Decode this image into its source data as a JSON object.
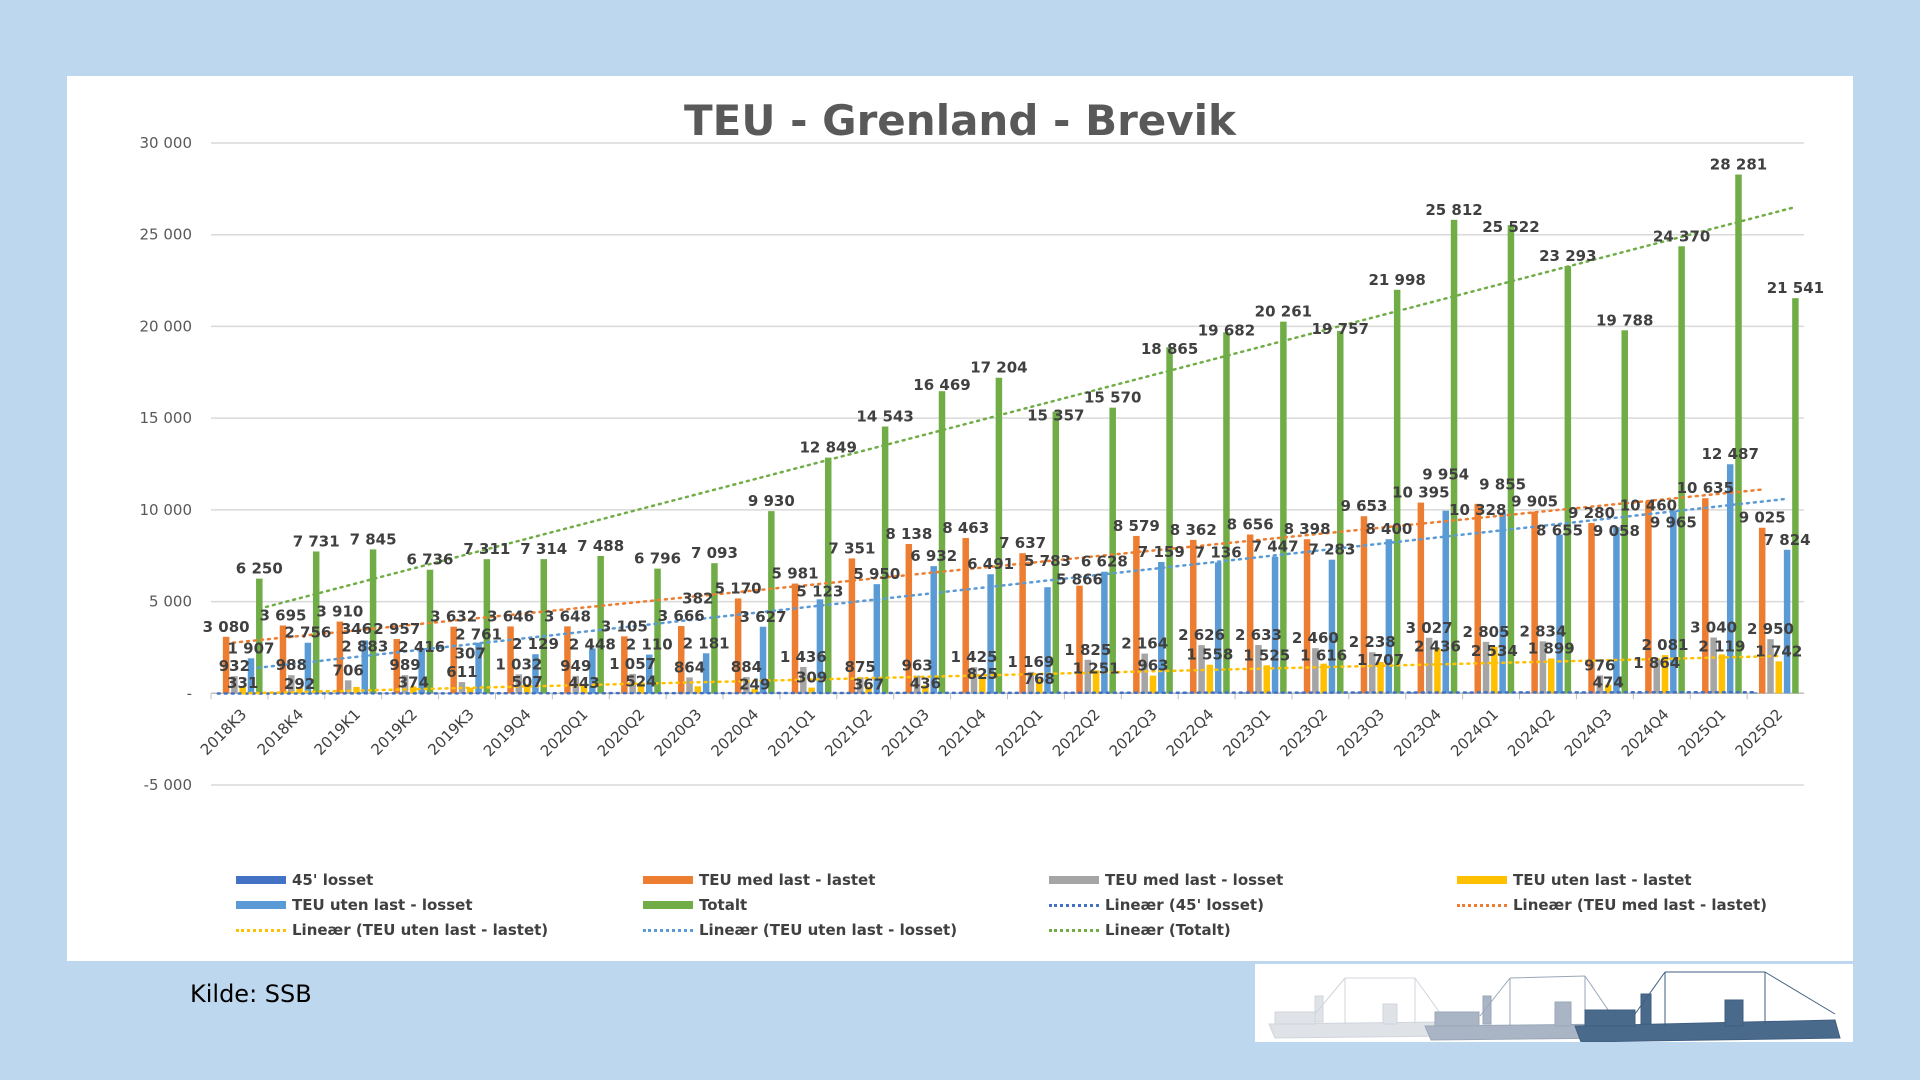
{
  "chart_data": {
    "type": "bar",
    "title": "TEU - Grenland - Brevik",
    "categories": [
      "2018K3",
      "2018K4",
      "2019K1",
      "2019K2",
      "2019K3",
      "2019Q4",
      "2020Q1",
      "2020Q2",
      "2020Q3",
      "2020Q4",
      "2021Q1",
      "2021Q2",
      "2021Q3",
      "2021Q4",
      "2022Q1",
      "2022Q2",
      "2022Q3",
      "2022Q4",
      "2023Q1",
      "2023Q2",
      "2023Q3",
      "2023Q4",
      "2024Q1",
      "2024Q2",
      "2024Q3",
      "2024Q4",
      "2025Q1",
      "2025Q2"
    ],
    "ylim": [
      -5000,
      30000
    ],
    "yticks": [
      -5000,
      0,
      5000,
      10000,
      15000,
      20000,
      25000,
      30000
    ],
    "ytick_labels": [
      "-5 000",
      "-",
      "5 000",
      "10 000",
      "15 000",
      "20 000",
      "25 000",
      "30 000"
    ],
    "grid": true,
    "legend_placement": "bottom",
    "series": [
      {
        "name": "45' losset",
        "color": "#4472c4",
        "labeled": false,
        "values": [
          0,
          0,
          0,
          0,
          0,
          0,
          0,
          0,
          0,
          0,
          0,
          0,
          0,
          0,
          0,
          50,
          50,
          50,
          50,
          50,
          50,
          50,
          50,
          50,
          50,
          50,
          50,
          50
        ]
      },
      {
        "name": "TEU med last - lastet",
        "color": "#ed7d31",
        "labeled": true,
        "values": [
          3080,
          3695,
          3910,
          2957,
          3632,
          3646,
          3648,
          3105,
          3666,
          5170,
          5981,
          7351,
          8138,
          8463,
          7637,
          5866,
          8579,
          8362,
          8656,
          8398,
          9653,
          10395,
          10328,
          9905,
          9280,
          10460,
          10635,
          9025
        ]
      },
      {
        "name": "TEU med last - losset",
        "color": "#a5a5a5",
        "labeled": true,
        "values": [
          932,
          988,
          706,
          989,
          611,
          1032,
          949,
          1057,
          864,
          884,
          1436,
          875,
          963,
          1425,
          1169,
          1825,
          2164,
          2626,
          2633,
          2460,
          2238,
          3027,
          2805,
          2834,
          976,
          1864,
          3040,
          2950
        ]
      },
      {
        "name": "TEU uten last - lastet",
        "color": "#ffc000",
        "labeled": true,
        "values": [
          331,
          292,
          346,
          374,
          307,
          507,
          443,
          524,
          382,
          249,
          309,
          367,
          436,
          825,
          768,
          1251,
          963,
          1558,
          1525,
          1616,
          1707,
          2436,
          2534,
          1899,
          474,
          2081,
          2119,
          1742
        ]
      },
      {
        "name": "TEU uten last - losset",
        "color": "#5b9bd5",
        "labeled": true,
        "values": [
          1907,
          2756,
          2883,
          2416,
          2761,
          2129,
          2448,
          2110,
          2181,
          3627,
          5123,
          5950,
          6932,
          6491,
          5783,
          6628,
          7159,
          7136,
          7447,
          7283,
          8400,
          9954,
          9855,
          8655,
          9058,
          9965,
          12487,
          7824
        ]
      },
      {
        "name": "Totalt",
        "color": "#70ad47",
        "labeled": true,
        "values": [
          6250,
          7731,
          7845,
          6736,
          7311,
          7314,
          7488,
          6796,
          7093,
          9930,
          12849,
          14543,
          16469,
          17204,
          15357,
          15570,
          18865,
          19682,
          20261,
          19757,
          21998,
          25812,
          25522,
          23293,
          19788,
          24370,
          28281,
          21541
        ]
      }
    ],
    "trendlines": [
      {
        "name": "Lineær (45' losset)",
        "of": "45' losset",
        "color": "#4472c4"
      },
      {
        "name": "Lineær (TEU med last - lastet)",
        "of": "TEU med last - lastet",
        "color": "#ed7d31"
      },
      {
        "name": "Lineær (TEU uten last - lastet)",
        "of": "TEU uten last - lastet",
        "color": "#ffc000"
      },
      {
        "name": "Lineær (TEU uten last - losset)",
        "of": "TEU uten last - losset",
        "color": "#5b9bd5"
      },
      {
        "name": "Lineær (Totalt)",
        "of": "Totalt",
        "color": "#70ad47"
      }
    ]
  },
  "legend": [
    {
      "label": "45' losset",
      "kind": "bar",
      "color": "#4472c4"
    },
    {
      "label": "TEU med last - lastet",
      "kind": "bar",
      "color": "#ed7d31"
    },
    {
      "label": "TEU med last - losset",
      "kind": "bar",
      "color": "#a5a5a5"
    },
    {
      "label": "TEU uten last - lastet",
      "kind": "bar",
      "color": "#ffc000"
    },
    {
      "label": "TEU uten last - losset",
      "kind": "bar",
      "color": "#5b9bd5"
    },
    {
      "label": "Totalt",
      "kind": "bar",
      "color": "#70ad47"
    },
    {
      "label": "Lineær (45' losset)",
      "kind": "line",
      "color": "#4472c4"
    },
    {
      "label": "Lineær (TEU med last - lastet)",
      "kind": "line",
      "color": "#ed7d31"
    },
    {
      "label": "Lineær (TEU uten last - lastet)",
      "kind": "line",
      "color": "#ffc000"
    },
    {
      "label": "Lineær (TEU uten last - losset)",
      "kind": "line",
      "color": "#5b9bd5"
    },
    {
      "label": "Lineær (Totalt)",
      "kind": "line",
      "color": "#70ad47"
    }
  ],
  "source": "Kilde: SSB",
  "colors": {
    "background": "#bdd7ee",
    "card": "#ffffff"
  }
}
